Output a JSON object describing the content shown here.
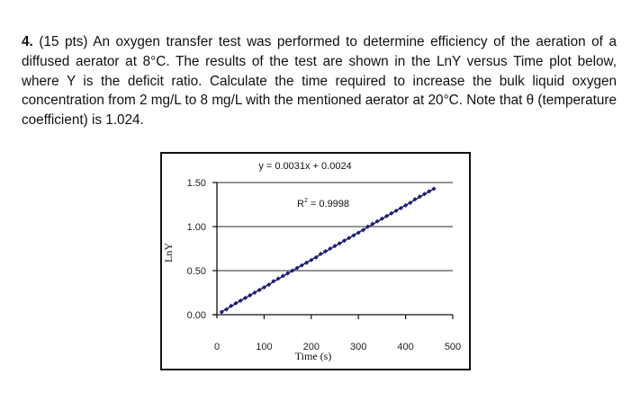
{
  "question": {
    "number": "4.",
    "points": "(15 pts)",
    "text": " An oxygen transfer test was performed to determine efficiency of the aeration of a diffused aerator at 8°C. The results of the test are shown in the LnY versus Time plot below, where Y is the deficit ratio. Calculate the time required to increase the bulk liquid oxygen concentration from 2 mg/L to 8 mg/L with the mentioned aerator at 20°C. Note that θ (temperature coefficient) is 1.024."
  },
  "chart": {
    "equation": "y = 0.0031x + 0.0024",
    "r_squared_label": "R",
    "r_squared_sup": "2",
    "r_squared_value": " = 0.9998",
    "ylabel": "LnY",
    "xlabel": "Time (s)",
    "yticks": [
      "0.00",
      "0.50",
      "1.00",
      "1.50"
    ],
    "xticks": [
      "0",
      "100",
      "200",
      "300",
      "400",
      "500"
    ],
    "marker_color": "#1a1a8c",
    "line_color": "#000000"
  },
  "chart_data": {
    "type": "scatter",
    "title": "",
    "xlabel": "Time (s)",
    "ylabel": "LnY",
    "xlim": [
      0,
      500
    ],
    "ylim": [
      0,
      1.5
    ],
    "grid": "horizontal",
    "x_ticks": [
      0,
      100,
      200,
      300,
      400,
      500
    ],
    "y_ticks": [
      0.0,
      0.5,
      1.0,
      1.5
    ],
    "trendline": {
      "type": "linear",
      "slope": 0.0031,
      "intercept": 0.0024,
      "r_squared": 0.9998,
      "label": "y = 0.0031x + 0.0024"
    },
    "series": [
      {
        "name": "LnY",
        "x": [
          10,
          20,
          30,
          40,
          50,
          60,
          70,
          80,
          90,
          100,
          110,
          120,
          130,
          140,
          150,
          160,
          170,
          180,
          190,
          200,
          210,
          220,
          230,
          240,
          250,
          260,
          270,
          280,
          290,
          300,
          310,
          320,
          330,
          340,
          350,
          360,
          370,
          380,
          390,
          400,
          410,
          420,
          430,
          440,
          450,
          460
        ],
        "y": [
          0.03,
          0.06,
          0.1,
          0.13,
          0.16,
          0.19,
          0.22,
          0.25,
          0.28,
          0.31,
          0.34,
          0.38,
          0.41,
          0.44,
          0.47,
          0.5,
          0.53,
          0.56,
          0.59,
          0.62,
          0.65,
          0.69,
          0.72,
          0.75,
          0.78,
          0.81,
          0.84,
          0.87,
          0.9,
          0.93,
          0.96,
          1.0,
          1.03,
          1.06,
          1.09,
          1.12,
          1.15,
          1.18,
          1.21,
          1.24,
          1.27,
          1.31,
          1.34,
          1.37,
          1.4,
          1.43
        ]
      }
    ]
  }
}
